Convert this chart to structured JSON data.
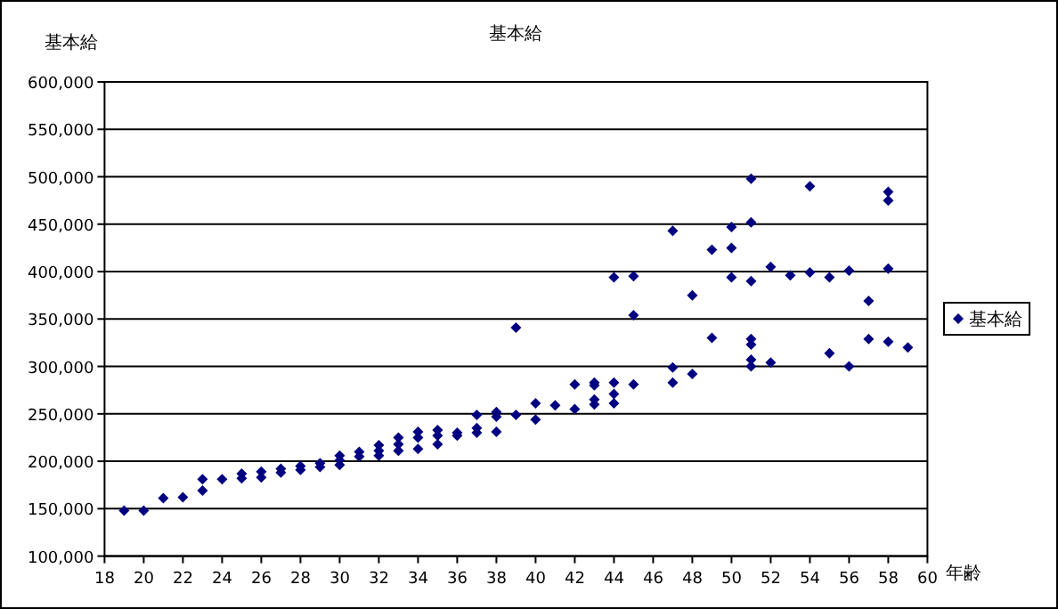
{
  "chart_data": {
    "type": "scatter",
    "title": "基本給",
    "ylabel": "基本給",
    "xlabel": "年齢",
    "xlim": [
      18,
      60
    ],
    "xticks": [
      18,
      20,
      22,
      24,
      26,
      28,
      30,
      32,
      34,
      36,
      38,
      40,
      42,
      44,
      46,
      48,
      50,
      52,
      54,
      56,
      58,
      60
    ],
    "ylim": [
      100000,
      600000
    ],
    "yticks": [
      {
        "value": 100000,
        "label": "100,000"
      },
      {
        "value": 150000,
        "label": "150,000"
      },
      {
        "value": 200000,
        "label": "200,000"
      },
      {
        "value": 250000,
        "label": "250,000"
      },
      {
        "value": 300000,
        "label": "300,000"
      },
      {
        "value": 350000,
        "label": "350,000"
      },
      {
        "value": 400000,
        "label": "400,000"
      },
      {
        "value": 450000,
        "label": "450,000"
      },
      {
        "value": 500000,
        "label": "500,000"
      },
      {
        "value": 550000,
        "label": "550,000"
      },
      {
        "value": 600000,
        "label": "600,000"
      }
    ],
    "grid": "y",
    "legend": "right",
    "marker": "diamond",
    "series": [
      {
        "name": "基本給",
        "color": "#000080",
        "x": [
          19,
          20,
          21,
          22,
          23,
          23,
          24,
          25,
          25,
          26,
          26,
          27,
          27,
          28,
          28,
          29,
          29,
          30,
          30,
          30,
          31,
          31,
          32,
          32,
          32,
          33,
          33,
          33,
          34,
          34,
          34,
          35,
          35,
          35,
          36,
          36,
          37,
          37,
          37,
          38,
          38,
          38,
          39,
          39,
          40,
          40,
          41,
          42,
          42,
          43,
          43,
          43,
          43,
          44,
          44,
          44,
          44,
          45,
          45,
          45,
          47,
          47,
          47,
          48,
          48,
          49,
          49,
          50,
          50,
          50,
          51,
          51,
          51,
          51,
          51,
          51,
          51,
          52,
          52,
          53,
          54,
          54,
          55,
          55,
          56,
          56,
          57,
          57,
          58,
          58,
          58,
          58,
          59
        ],
        "values": [
          148000,
          148000,
          161000,
          162000,
          169000,
          181000,
          181000,
          187000,
          182000,
          189000,
          183000,
          192000,
          188000,
          195000,
          191000,
          198000,
          194000,
          206000,
          201000,
          196000,
          210000,
          205000,
          217000,
          211000,
          206000,
          225000,
          218000,
          211000,
          231000,
          225000,
          213000,
          233000,
          227000,
          218000,
          230000,
          227000,
          249000,
          235000,
          230000,
          252000,
          247000,
          231000,
          341000,
          249000,
          261000,
          244000,
          259000,
          281000,
          255000,
          283000,
          280000,
          265000,
          260000,
          394000,
          283000,
          271000,
          261000,
          395000,
          354000,
          281000,
          443000,
          299000,
          283000,
          375000,
          292000,
          423000,
          330000,
          447000,
          425000,
          394000,
          498000,
          452000,
          390000,
          329000,
          323000,
          307000,
          300000,
          405000,
          304000,
          396000,
          490000,
          399000,
          394000,
          314000,
          401000,
          300000,
          369000,
          329000,
          484000,
          475000,
          403000,
          326000,
          320000
        ]
      }
    ]
  }
}
